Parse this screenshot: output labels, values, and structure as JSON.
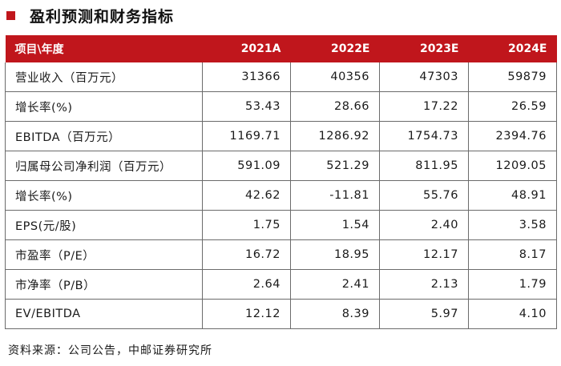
{
  "title": "盈利预测和财务指标",
  "table": {
    "header": [
      "项目\\年度",
      "2021A",
      "2022E",
      "2023E",
      "2024E"
    ],
    "rows": [
      {
        "label": "营业收入（百万元）",
        "values": [
          "31366",
          "40356",
          "47303",
          "59879"
        ]
      },
      {
        "label": "增长率(%)",
        "values": [
          "53.43",
          "28.66",
          "17.22",
          "26.59"
        ]
      },
      {
        "label": "EBITDA（百万元）",
        "values": [
          "1169.71",
          "1286.92",
          "1754.73",
          "2394.76"
        ]
      },
      {
        "label": "归属母公司净利润（百万元）",
        "values": [
          "591.09",
          "521.29",
          "811.95",
          "1209.05"
        ]
      },
      {
        "label": "增长率(%)",
        "values": [
          "42.62",
          "-11.81",
          "55.76",
          "48.91"
        ]
      },
      {
        "label": "EPS(元/股)",
        "values": [
          "1.75",
          "1.54",
          "2.40",
          "3.58"
        ]
      },
      {
        "label": "市盈率（P/E）",
        "values": [
          "16.72",
          "18.95",
          "12.17",
          "8.17"
        ]
      },
      {
        "label": "市净率（P/B）",
        "values": [
          "2.64",
          "2.41",
          "2.13",
          "1.79"
        ]
      },
      {
        "label": "EV/EBITDA",
        "values": [
          "12.12",
          "8.39",
          "5.97",
          "4.10"
        ]
      }
    ]
  },
  "source": "资料来源：公司公告，中邮证券研究所",
  "colors": {
    "accent": "#c0161c",
    "grid": "#6b6b6b"
  }
}
